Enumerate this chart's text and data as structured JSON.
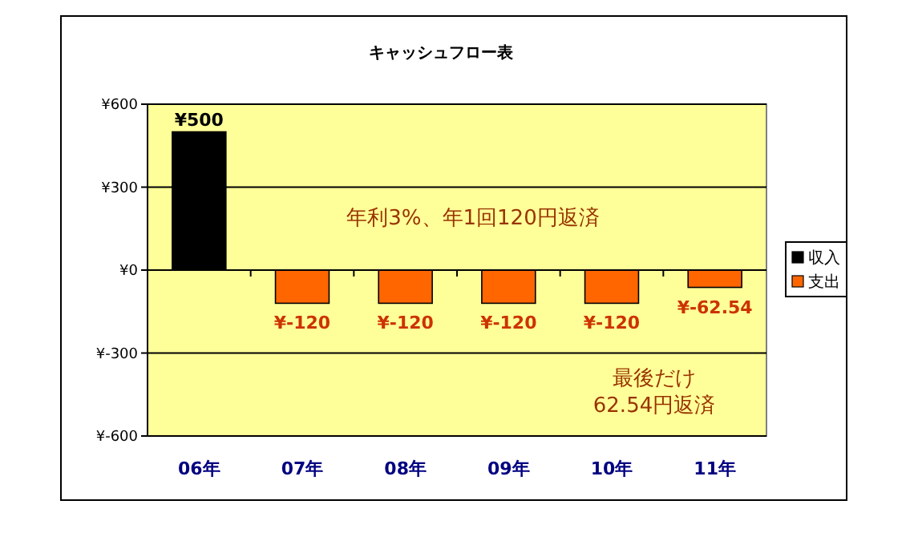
{
  "chart_data": {
    "type": "bar",
    "title": "キャッシュフロー表",
    "categories": [
      "06年",
      "07年",
      "08年",
      "09年",
      "10年",
      "11年"
    ],
    "series": [
      {
        "name": "収入",
        "color": "#000000",
        "values": [
          500,
          null,
          null,
          null,
          null,
          null
        ],
        "value_labels": [
          "¥500",
          null,
          null,
          null,
          null,
          null
        ]
      },
      {
        "name": "支出",
        "color": "#ff6600",
        "values": [
          null,
          -120,
          -120,
          -120,
          -120,
          -62.54
        ],
        "value_labels": [
          null,
          "¥-120",
          "¥-120",
          "¥-120",
          "¥-120",
          "¥-62.54"
        ]
      }
    ],
    "ylim": [
      -600,
      600
    ],
    "yticks": [
      {
        "value": -600,
        "label": "¥-600"
      },
      {
        "value": -300,
        "label": "¥-300"
      },
      {
        "value": 0,
        "label": "¥0"
      },
      {
        "value": 300,
        "label": "¥300"
      },
      {
        "value": 600,
        "label": "¥600"
      }
    ],
    "grid": "y",
    "legend": "right",
    "annotations": [
      "年利3%、年1回120円返済",
      "最後だけ\n62.54円返済"
    ]
  }
}
